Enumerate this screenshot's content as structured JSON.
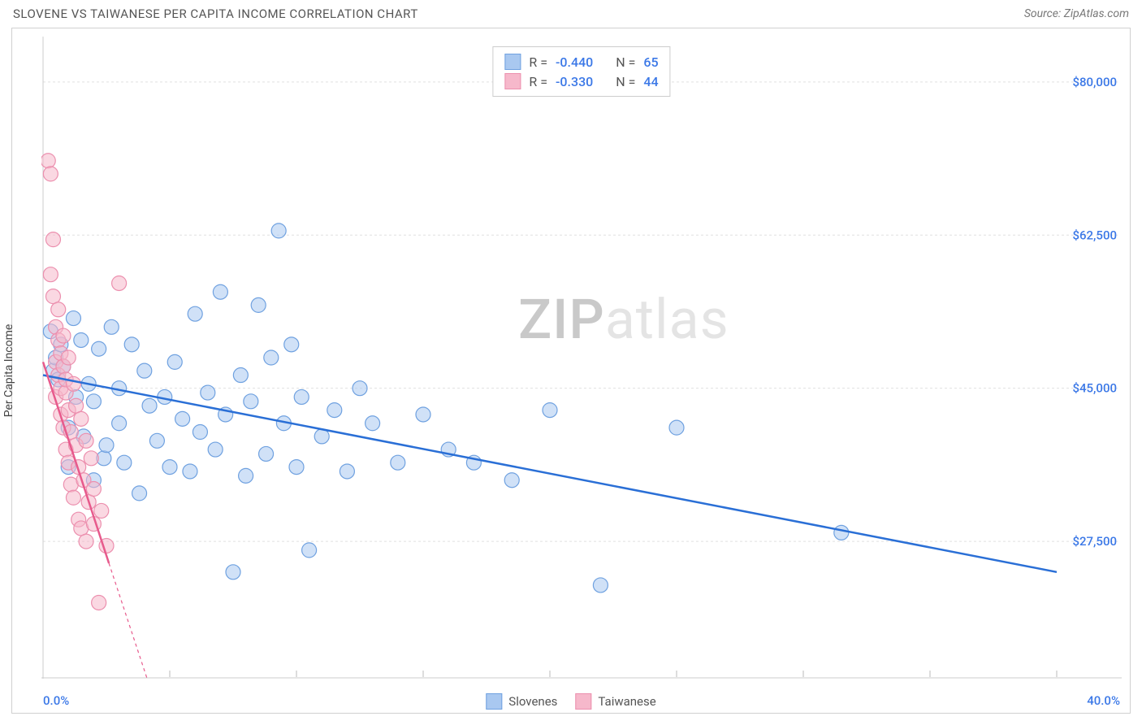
{
  "title": "SLOVENE VS TAIWANESE PER CAPITA INCOME CORRELATION CHART",
  "source": "Source: ZipAtlas.com",
  "ylabel": "Per Capita Income",
  "watermark_bold": "ZIP",
  "watermark_light": "atlas",
  "chart": {
    "type": "scatter",
    "xlim": [
      0,
      40
    ],
    "ylim": [
      12000,
      85000
    ],
    "x_axis_start_label": "0.0%",
    "x_axis_end_label": "40.0%",
    "x_ticks": [
      0,
      5,
      10,
      15,
      20,
      25,
      30,
      35,
      40
    ],
    "y_ticks": [
      {
        "v": 27500,
        "label": "$27,500"
      },
      {
        "v": 45000,
        "label": "$45,000"
      },
      {
        "v": 62500,
        "label": "$62,500"
      },
      {
        "v": 80000,
        "label": "$80,000"
      }
    ],
    "grid_color": "#e0e0e0",
    "axis_color": "#cccccc",
    "label_color": "#3b78e7",
    "background": "#ffffff",
    "series": [
      {
        "name": "Slovenes",
        "fill": "#a9c8f0",
        "stroke": "#6fa1e0",
        "fill_opacity": 0.55,
        "marker_r": 9,
        "R": "-0.440",
        "N": "65",
        "trend": {
          "x1": 0,
          "y1": 46500,
          "x2": 40,
          "y2": 24000,
          "color": "#2a6fd6",
          "width": 2.5
        },
        "points": [
          [
            0.3,
            51500
          ],
          [
            0.4,
            47000
          ],
          [
            0.5,
            48500
          ],
          [
            0.6,
            46000
          ],
          [
            0.7,
            50000
          ],
          [
            0.8,
            47500
          ],
          [
            1.0,
            36000
          ],
          [
            1.0,
            40500
          ],
          [
            1.2,
            53000
          ],
          [
            1.3,
            44000
          ],
          [
            1.5,
            50500
          ],
          [
            1.6,
            39500
          ],
          [
            1.8,
            45500
          ],
          [
            2.0,
            34500
          ],
          [
            2.0,
            43500
          ],
          [
            2.2,
            49500
          ],
          [
            2.4,
            37000
          ],
          [
            2.5,
            38500
          ],
          [
            2.7,
            52000
          ],
          [
            3.0,
            41000
          ],
          [
            3.0,
            45000
          ],
          [
            3.2,
            36500
          ],
          [
            3.5,
            50000
          ],
          [
            3.8,
            33000
          ],
          [
            4.0,
            47000
          ],
          [
            4.2,
            43000
          ],
          [
            4.5,
            39000
          ],
          [
            4.8,
            44000
          ],
          [
            5.0,
            36000
          ],
          [
            5.2,
            48000
          ],
          [
            5.5,
            41500
          ],
          [
            5.8,
            35500
          ],
          [
            6.0,
            53500
          ],
          [
            6.2,
            40000
          ],
          [
            6.5,
            44500
          ],
          [
            6.8,
            38000
          ],
          [
            7.0,
            56000
          ],
          [
            7.2,
            42000
          ],
          [
            7.5,
            24000
          ],
          [
            7.8,
            46500
          ],
          [
            8.0,
            35000
          ],
          [
            8.2,
            43500
          ],
          [
            8.5,
            54500
          ],
          [
            8.8,
            37500
          ],
          [
            9.0,
            48500
          ],
          [
            9.3,
            63000
          ],
          [
            9.5,
            41000
          ],
          [
            9.8,
            50000
          ],
          [
            10.0,
            36000
          ],
          [
            10.2,
            44000
          ],
          [
            10.5,
            26500
          ],
          [
            11.0,
            39500
          ],
          [
            11.5,
            42500
          ],
          [
            12.0,
            35500
          ],
          [
            12.5,
            45000
          ],
          [
            13.0,
            41000
          ],
          [
            14.0,
            36500
          ],
          [
            15.0,
            42000
          ],
          [
            16.0,
            38000
          ],
          [
            17.0,
            36500
          ],
          [
            18.5,
            34500
          ],
          [
            20.0,
            42500
          ],
          [
            22.0,
            22500
          ],
          [
            25.0,
            40500
          ],
          [
            31.5,
            28500
          ]
        ]
      },
      {
        "name": "Taiwanese",
        "fill": "#f6b8cb",
        "stroke": "#ec8fae",
        "fill_opacity": 0.55,
        "marker_r": 9,
        "R": "-0.330",
        "N": "44",
        "trend": {
          "x1": 0,
          "y1": 48000,
          "x2": 2.6,
          "y2": 25000,
          "color": "#e75a8c",
          "width": 2.5,
          "dash_ext": {
            "x1": 2.6,
            "y1": 25000,
            "x2": 5.0,
            "y2": 4000
          }
        },
        "points": [
          [
            0.2,
            71000
          ],
          [
            0.3,
            69500
          ],
          [
            0.3,
            58000
          ],
          [
            0.4,
            55500
          ],
          [
            0.4,
            62000
          ],
          [
            0.5,
            52000
          ],
          [
            0.5,
            48000
          ],
          [
            0.5,
            44000
          ],
          [
            0.6,
            50500
          ],
          [
            0.6,
            46500
          ],
          [
            0.6,
            54000
          ],
          [
            0.7,
            42000
          ],
          [
            0.7,
            49000
          ],
          [
            0.7,
            45000
          ],
          [
            0.8,
            40500
          ],
          [
            0.8,
            47500
          ],
          [
            0.8,
            51000
          ],
          [
            0.9,
            38000
          ],
          [
            0.9,
            44500
          ],
          [
            0.9,
            46000
          ],
          [
            1.0,
            36500
          ],
          [
            1.0,
            42500
          ],
          [
            1.0,
            48500
          ],
          [
            1.1,
            34000
          ],
          [
            1.1,
            40000
          ],
          [
            1.2,
            45500
          ],
          [
            1.2,
            32500
          ],
          [
            1.3,
            38500
          ],
          [
            1.3,
            43000
          ],
          [
            1.4,
            30000
          ],
          [
            1.4,
            36000
          ],
          [
            1.5,
            41500
          ],
          [
            1.5,
            29000
          ],
          [
            1.6,
            34500
          ],
          [
            1.7,
            39000
          ],
          [
            1.7,
            27500
          ],
          [
            1.8,
            32000
          ],
          [
            1.9,
            37000
          ],
          [
            2.0,
            29500
          ],
          [
            2.0,
            33500
          ],
          [
            2.2,
            20500
          ],
          [
            2.3,
            31000
          ],
          [
            2.5,
            27000
          ],
          [
            3.0,
            57000
          ]
        ]
      }
    ]
  },
  "legend": {
    "series1_label": "Slovenes",
    "series2_label": "Taiwanese"
  },
  "stats_labels": {
    "R": "R =",
    "N": "N ="
  }
}
